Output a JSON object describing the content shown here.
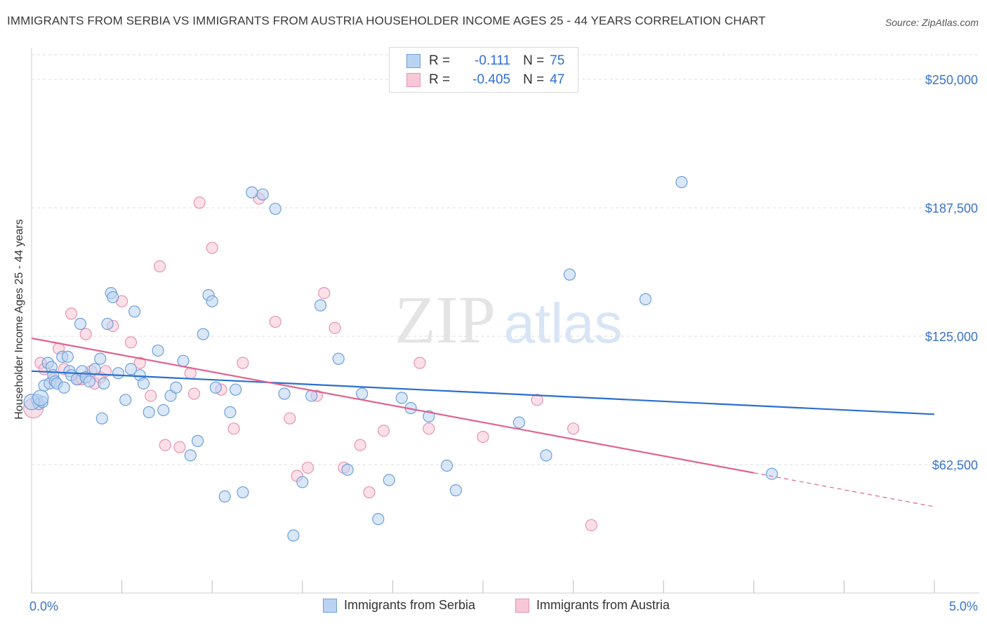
{
  "header": {
    "title": "IMMIGRANTS FROM SERBIA VS IMMIGRANTS FROM AUSTRIA HOUSEHOLDER INCOME AGES 25 - 44 YEARS CORRELATION CHART",
    "source": "Source: ZipAtlas.com"
  },
  "legend": {
    "series1": {
      "r_label": "R =",
      "r_value": "-0.111",
      "n_label": "N =",
      "n_value": "75"
    },
    "series2": {
      "r_label": "R =",
      "r_value": "-0.405",
      "n_label": "N =",
      "n_value": "47"
    }
  },
  "watermark": {
    "part1": "ZIP",
    "part2": "atlas"
  },
  "colors": {
    "serbia_fill": "#b9d3f2",
    "serbia_stroke": "#6f9fdc",
    "serbia_line": "#2a6fcf",
    "austria_fill": "#f7c7d6",
    "austria_stroke": "#e793b0",
    "austria_line": "#e0638f",
    "axis_label": "#3b73c9",
    "grid": "#dddddd"
  },
  "chart_data": {
    "type": "scatter",
    "title": "IMMIGRANTS FROM SERBIA VS IMMIGRANTS FROM AUSTRIA HOUSEHOLDER INCOME AGES 25 - 44 YEARS CORRELATION CHART",
    "xlabel": "",
    "ylabel": "Householder Income Ages 25 - 44 years",
    "xlim": [
      0,
      5
    ],
    "ylim": [
      0,
      262000
    ],
    "x_tick_labels": [
      {
        "value": 0,
        "label": "0.0%"
      },
      {
        "value": 5,
        "label": "5.0%"
      }
    ],
    "y_ticks": [
      {
        "value": 62500,
        "label": "$62,500"
      },
      {
        "value": 125000,
        "label": "$125,000"
      },
      {
        "value": 187500,
        "label": "$187,500"
      },
      {
        "value": 250000,
        "label": "$250,000"
      }
    ],
    "series": [
      {
        "name": "Immigrants from Serbia",
        "r": -0.111,
        "n": 75,
        "trend": {
          "x0": 0.0,
          "y0": 108000,
          "x1": 5.0,
          "y1": 87000
        },
        "points": [
          [
            0.03,
            94000
          ],
          [
            0.04,
            92000
          ],
          [
            0.06,
            93000
          ],
          [
            0.07,
            101000
          ],
          [
            0.09,
            112000
          ],
          [
            0.1,
            102000
          ],
          [
            0.11,
            110000
          ],
          [
            0.12,
            106000
          ],
          [
            0.13,
            103000
          ],
          [
            0.14,
            102000
          ],
          [
            0.17,
            115000
          ],
          [
            0.18,
            100000
          ],
          [
            0.2,
            115000
          ],
          [
            0.21,
            108000
          ],
          [
            0.22,
            106000
          ],
          [
            0.25,
            104000
          ],
          [
            0.27,
            131000
          ],
          [
            0.28,
            108000
          ],
          [
            0.3,
            105000
          ],
          [
            0.32,
            103000
          ],
          [
            0.35,
            109000
          ],
          [
            0.38,
            114000
          ],
          [
            0.39,
            85000
          ],
          [
            0.4,
            102000
          ],
          [
            0.42,
            131000
          ],
          [
            0.44,
            146000
          ],
          [
            0.45,
            144000
          ],
          [
            0.48,
            107000
          ],
          [
            0.52,
            94000
          ],
          [
            0.55,
            109000
          ],
          [
            0.57,
            137000
          ],
          [
            0.6,
            106000
          ],
          [
            0.62,
            102000
          ],
          [
            0.65,
            88000
          ],
          [
            0.7,
            118000
          ],
          [
            0.73,
            89000
          ],
          [
            0.77,
            96000
          ],
          [
            0.8,
            100000
          ],
          [
            0.84,
            113000
          ],
          [
            0.88,
            67000
          ],
          [
            0.92,
            74000
          ],
          [
            0.95,
            126000
          ],
          [
            0.98,
            145000
          ],
          [
            1.0,
            142000
          ],
          [
            1.02,
            100000
          ],
          [
            1.07,
            47000
          ],
          [
            1.1,
            88000
          ],
          [
            1.13,
            99000
          ],
          [
            1.17,
            49000
          ],
          [
            1.22,
            195000
          ],
          [
            1.28,
            194000
          ],
          [
            1.35,
            187000
          ],
          [
            1.4,
            97000
          ],
          [
            1.45,
            28000
          ],
          [
            1.5,
            54000
          ],
          [
            1.55,
            96000
          ],
          [
            1.6,
            140000
          ],
          [
            1.7,
            114000
          ],
          [
            1.75,
            60000
          ],
          [
            1.83,
            97000
          ],
          [
            1.92,
            36000
          ],
          [
            1.98,
            55000
          ],
          [
            2.05,
            95000
          ],
          [
            2.1,
            90000
          ],
          [
            2.2,
            86000
          ],
          [
            2.3,
            62000
          ],
          [
            2.35,
            50000
          ],
          [
            2.7,
            83000
          ],
          [
            2.85,
            67000
          ],
          [
            2.98,
            155000
          ],
          [
            3.4,
            143000
          ],
          [
            3.6,
            200000
          ],
          [
            4.1,
            58000
          ],
          [
            0.0,
            93000
          ],
          [
            0.05,
            95000
          ]
        ]
      },
      {
        "name": "Immigrants from Austria",
        "r": -0.405,
        "n": 47,
        "trend": {
          "x0": 0.0,
          "y0": 124000,
          "x1": 4.0,
          "y1": 58500
        },
        "trend_dashed": {
          "x0": 4.0,
          "y0": 58500,
          "x1": 5.0,
          "y1": 42000
        },
        "points": [
          [
            0.01,
            90000
          ],
          [
            0.05,
            112000
          ],
          [
            0.07,
            109000
          ],
          [
            0.12,
            104000
          ],
          [
            0.15,
            119000
          ],
          [
            0.18,
            109000
          ],
          [
            0.22,
            136000
          ],
          [
            0.26,
            104000
          ],
          [
            0.28,
            104000
          ],
          [
            0.3,
            126000
          ],
          [
            0.33,
            108000
          ],
          [
            0.35,
            102000
          ],
          [
            0.38,
            105000
          ],
          [
            0.41,
            108000
          ],
          [
            0.45,
            130000
          ],
          [
            0.5,
            142000
          ],
          [
            0.55,
            122000
          ],
          [
            0.6,
            112000
          ],
          [
            0.66,
            96000
          ],
          [
            0.71,
            159000
          ],
          [
            0.74,
            72000
          ],
          [
            0.82,
            71000
          ],
          [
            0.88,
            107000
          ],
          [
            0.9,
            97000
          ],
          [
            0.93,
            190000
          ],
          [
            1.0,
            168000
          ],
          [
            1.05,
            99000
          ],
          [
            1.12,
            80000
          ],
          [
            1.17,
            112000
          ],
          [
            1.26,
            192000
          ],
          [
            1.35,
            132000
          ],
          [
            1.43,
            85000
          ],
          [
            1.47,
            57000
          ],
          [
            1.53,
            61000
          ],
          [
            1.58,
            96000
          ],
          [
            1.62,
            146000
          ],
          [
            1.68,
            129000
          ],
          [
            1.73,
            61000
          ],
          [
            1.82,
            72000
          ],
          [
            1.87,
            49000
          ],
          [
            1.95,
            79000
          ],
          [
            2.15,
            112000
          ],
          [
            2.2,
            80000
          ],
          [
            2.5,
            76000
          ],
          [
            2.8,
            94000
          ],
          [
            3.0,
            80000
          ],
          [
            3.1,
            33000
          ]
        ]
      }
    ]
  },
  "bottom_legend": {
    "serbia": "Immigrants from Serbia",
    "austria": "Immigrants from Austria"
  }
}
